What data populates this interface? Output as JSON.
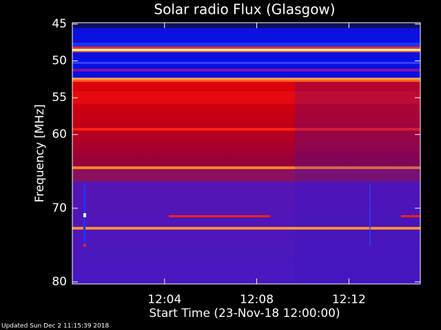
{
  "chart_data": {
    "type": "spectrogram",
    "title": "Solar radio Flux (Glasgow)",
    "x_label": "Start Time (23-Nov-18 12:00:00)",
    "y_label": "Frequency [MHz]",
    "footer": "Updated Sun Dec  2 11:15:39 2018",
    "xlim": [
      "12:00:00",
      "12:15:06"
    ],
    "xticks": [
      "12:04",
      "12:08",
      "12:12"
    ],
    "ylim": [
      45,
      80
    ],
    "yticks": [
      45,
      50,
      55,
      60,
      70,
      80
    ],
    "y_inverted": true
  }
}
